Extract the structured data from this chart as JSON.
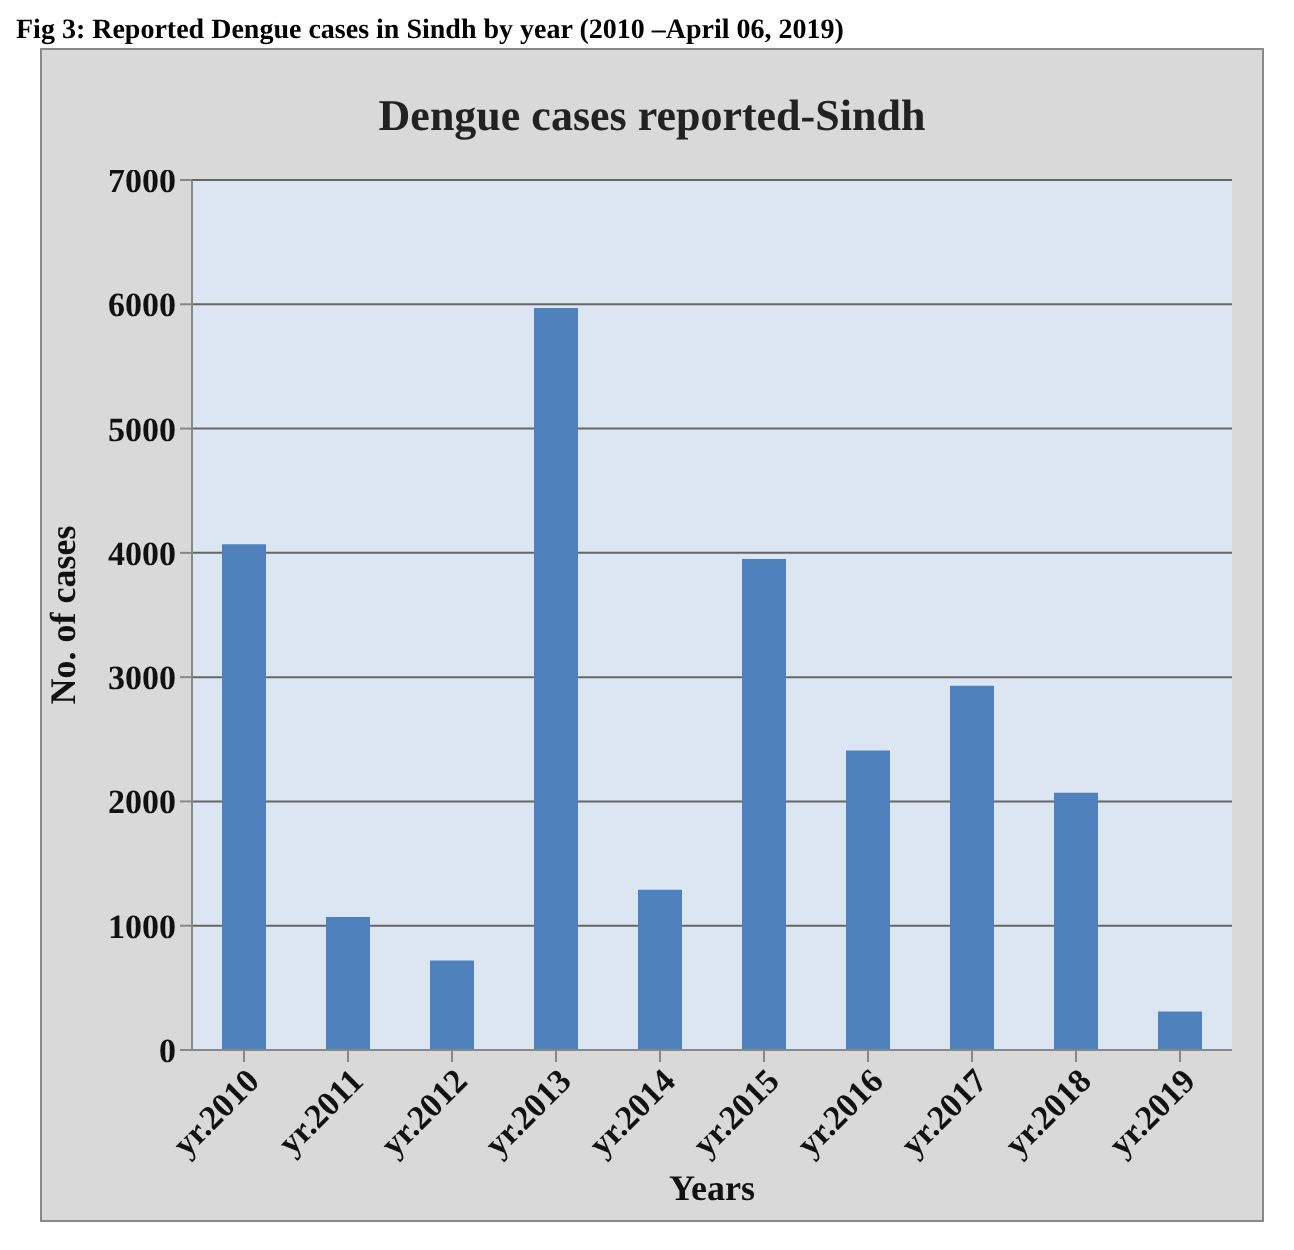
{
  "chart_data": {
    "type": "bar",
    "title": "Dengue cases reported-Sindh",
    "xlabel": "Years",
    "ylabel": "No. of cases",
    "annotations": [
      "Fig 3: Reported Dengue cases in Sindh by year (2010 –April 06, 2019)"
    ],
    "categories": [
      "yr.2010",
      "yr.2011",
      "yr.2012",
      "yr.2013",
      "yr.2014",
      "yr.2015",
      "yr.2016",
      "yr.2017",
      "yr.2018",
      "yr.2019"
    ],
    "values": [
      4070,
      1070,
      720,
      5970,
      1290,
      3950,
      2410,
      2930,
      2070,
      310
    ],
    "color": "#4f81bd",
    "ylim": [
      0,
      7000
    ],
    "yticks": [
      0,
      1000,
      2000,
      3000,
      4000,
      5000,
      6000,
      7000
    ],
    "grid": "y",
    "legend": false
  }
}
